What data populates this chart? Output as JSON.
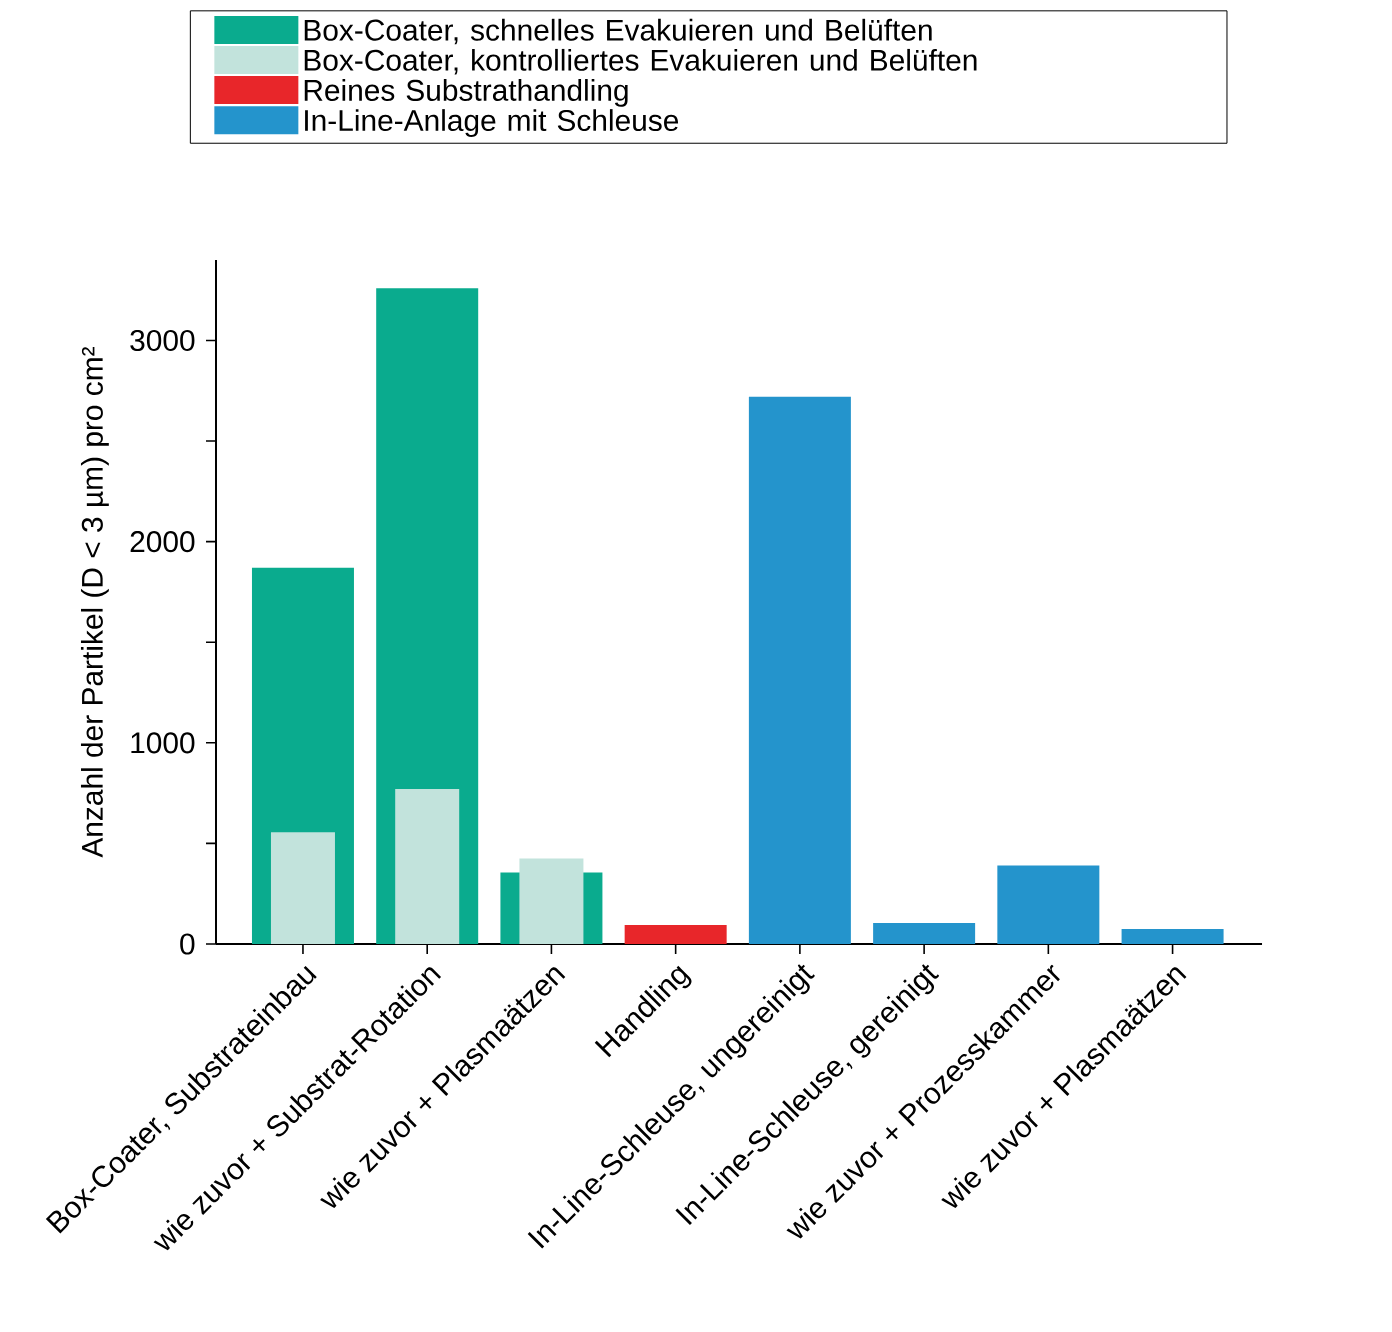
{
  "chart_data": {
    "type": "bar",
    "ylabel": "Anzahl der Partikel (D < 3 µm) pro cm²",
    "categories": [
      "Box-Coater, Substrateinbau",
      "wie zuvor + Substrat-Rotation",
      "wie zuvor + Plasmaätzen",
      "Handling",
      "In-Line-Schleuse, ungereinigt",
      "In-Line-Schleuse, gereinigt",
      "wie zuvor + Prozesskammer",
      "wie zuvor + Plasmaätzen"
    ],
    "series": [
      {
        "name": "Box-Coater, schnelles Evakuieren und Belüften",
        "color": "#0aab8e",
        "values": [
          1870,
          3260,
          355,
          null,
          null,
          null,
          null,
          null
        ]
      },
      {
        "name": "Box-Coater, kontrolliertes Evakuieren und Belüften",
        "color": "#c2e3dc",
        "values": [
          555,
          770,
          425,
          null,
          null,
          null,
          null,
          null
        ]
      },
      {
        "name": "Reines Substrathandling",
        "color": "#e8262a",
        "values": [
          null,
          null,
          null,
          95,
          null,
          null,
          null,
          null
        ]
      },
      {
        "name": "In-Line-Anlage mit Schleuse",
        "color": "#2494cc",
        "values": [
          null,
          null,
          null,
          null,
          2720,
          105,
          390,
          75
        ]
      }
    ],
    "ylim": [
      0,
      3400
    ],
    "yticks": [
      0,
      {
        "value": 500,
        "label": null
      },
      1000,
      {
        "value": 1500,
        "label": null
      },
      2000,
      {
        "value": 2500,
        "label": null
      },
      3000
    ],
    "legend": "top",
    "grid": false
  }
}
